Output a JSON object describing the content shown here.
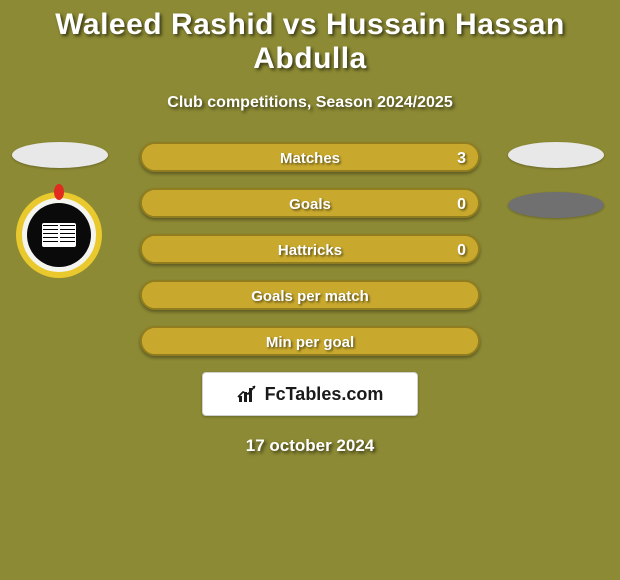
{
  "background_color": "#8c8a34",
  "text_color": "#ffffff",
  "title": "Waleed Rashid vs Hussain Hassan Abdulla",
  "title_fontsize": 30,
  "subtitle": "Club competitions, Season 2024/2025",
  "subtitle_fontsize": 16,
  "date": "17 october 2024",
  "left_player": {
    "blob_color": "#e8e8e8",
    "club_badge": {
      "outer_bg": "#f5f5f0",
      "ring_color": "#e9c92d",
      "inner_bg": "#0a0a0a",
      "book_bg": "#ffffff",
      "flame_color": "#e22b1f"
    }
  },
  "right_player": {
    "blob1_color": "#e8e8e8",
    "blob2_color": "#707070"
  },
  "bars": {
    "track_color": "#c8a92e",
    "track_border": "#8f7d20",
    "fill_left_color": "#c8a92e",
    "fill_right_color": "#c8a92e",
    "label_color": "#ffffff",
    "value_color": "#ffffff",
    "rows": [
      {
        "label": "Matches",
        "left": "",
        "right": "3",
        "left_pct": 0,
        "right_pct": 100
      },
      {
        "label": "Goals",
        "left": "",
        "right": "0",
        "left_pct": 0,
        "right_pct": 100
      },
      {
        "label": "Hattricks",
        "left": "",
        "right": "0",
        "left_pct": 0,
        "right_pct": 100
      },
      {
        "label": "Goals per match",
        "left": "",
        "right": "",
        "left_pct": 0,
        "right_pct": 100
      },
      {
        "label": "Min per goal",
        "left": "",
        "right": "",
        "left_pct": 0,
        "right_pct": 100
      }
    ]
  },
  "brand": {
    "box_bg": "#ffffff",
    "box_border": "#d0d0d0",
    "text_color": "#1a1a1a",
    "text": "FcTables.com"
  }
}
